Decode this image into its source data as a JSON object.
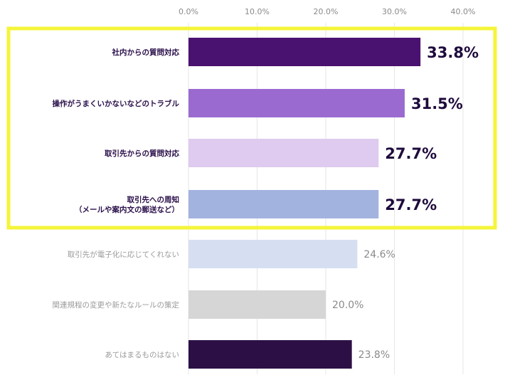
{
  "chart_data": {
    "type": "bar",
    "orientation": "horizontal",
    "xlim": [
      0,
      40
    ],
    "x_ticks": [
      "0.0%",
      "10.0%",
      "20.0%",
      "30.0%",
      "40.0%"
    ],
    "grid": true,
    "categories": [
      [
        "社内からの質問対応"
      ],
      [
        "操作がうまくいかないなどのトラブル"
      ],
      [
        "取引先からの質問対応"
      ],
      [
        "取引先への周知",
        "（メールや案内文の郵送など）"
      ],
      [
        "取引先が電子化に応じてくれない"
      ],
      [
        "関連規程の変更や新たなルールの策定"
      ],
      [
        "あてはまるものはない"
      ]
    ],
    "values": [
      33.8,
      31.5,
      27.7,
      27.7,
      24.6,
      20.0,
      23.8
    ],
    "value_labels": [
      "33.8%",
      "31.5%",
      "27.7%",
      "27.7%",
      "24.6%",
      "20.0%",
      "23.8%"
    ],
    "colors": [
      "#4a1270",
      "#9b6ad0",
      "#decbef",
      "#a3b3e0",
      "#d6dff2",
      "#d6d6d6",
      "#2c1045"
    ],
    "highlighted": [
      true,
      true,
      true,
      true,
      false,
      false,
      false
    ],
    "highlight_box_color": "#f5f53a"
  }
}
